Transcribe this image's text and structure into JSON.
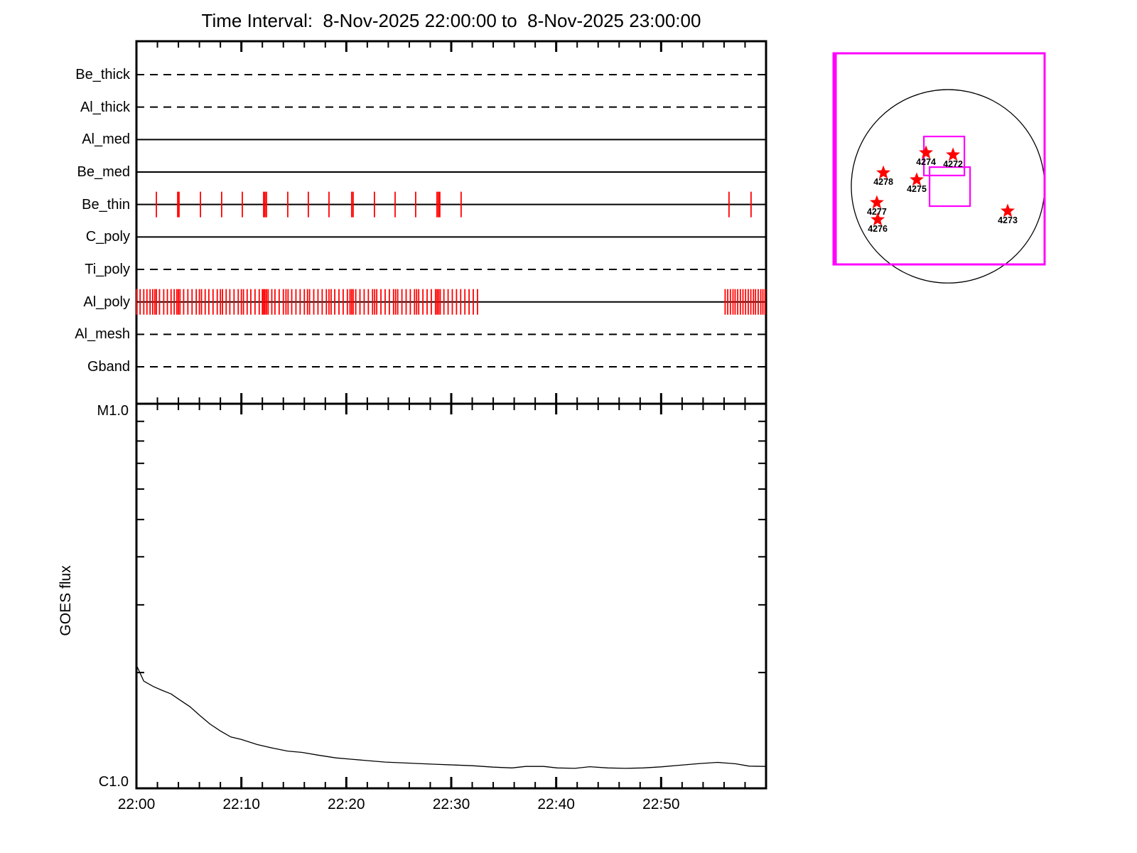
{
  "title": "Time Interval:  8-Nov-2025 22:00:00 to  8-Nov-2025 23:00:00",
  "colors": {
    "exposure_tick": "#ff0000",
    "fov_magenta": "#ff00ff",
    "axis": "#000000",
    "background": "#ffffff",
    "goes_curve": "#000000"
  },
  "time_axis": {
    "tick_labels": [
      "22:00",
      "22:10",
      "22:20",
      "22:30",
      "22:40",
      "22:50"
    ],
    "range_minutes": [
      0,
      60
    ],
    "major_tick_every_min": 10,
    "minor_tick_every_min": 2
  },
  "chart_data": [
    {
      "type": "scatter",
      "name": "xrt-filter-exposure-timeline",
      "x_unit": "minutes after 8-Nov-2025 22:00:00 UT",
      "tick_meaning": "red vertical marks = exposures taken with that filter",
      "rows": [
        {
          "name": "Be_thick",
          "line_style": "dashed",
          "ticks": []
        },
        {
          "name": "Al_thick",
          "line_style": "dashed",
          "ticks": []
        },
        {
          "name": "Al_med",
          "line_style": "solid",
          "ticks": []
        },
        {
          "name": "Be_med",
          "line_style": "solid",
          "ticks": []
        },
        {
          "name": "Be_thin",
          "line_style": "solid",
          "ticks": [
            1.9,
            3.93,
            4.06,
            6.1,
            8.12,
            10.09,
            12.12,
            12.25,
            12.39,
            14.42,
            16.38,
            18.35,
            20.51,
            20.65,
            22.68,
            24.65,
            26.61,
            28.64,
            28.78,
            28.91,
            30.94,
            56.47,
            58.57
          ]
        },
        {
          "name": "C_poly",
          "line_style": "solid",
          "ticks": []
        },
        {
          "name": "Ti_poly",
          "line_style": "dashed",
          "ticks": []
        },
        {
          "name": "Al_poly",
          "line_style": "solid",
          "ticks": [
            0.0,
            0.35,
            0.7,
            1.0,
            1.3,
            1.55,
            1.75,
            1.9,
            2.2,
            2.6,
            2.95,
            3.3,
            3.6,
            3.85,
            4.0,
            4.15,
            4.5,
            4.9,
            5.3,
            5.7,
            6.0,
            6.2,
            6.55,
            6.9,
            7.3,
            7.7,
            8.0,
            8.2,
            8.55,
            8.9,
            9.3,
            9.7,
            10.0,
            10.2,
            10.55,
            10.9,
            11.3,
            11.7,
            12.0,
            12.12,
            12.25,
            12.4,
            12.55,
            12.9,
            13.2,
            13.6,
            14.0,
            14.25,
            14.45,
            14.8,
            15.2,
            15.6,
            16.0,
            16.3,
            16.5,
            16.9,
            17.3,
            17.7,
            18.1,
            18.35,
            18.55,
            18.9,
            19.3,
            19.7,
            20.1,
            20.35,
            20.5,
            20.65,
            20.9,
            21.3,
            21.7,
            22.1,
            22.5,
            22.7,
            22.9,
            23.3,
            23.7,
            24.1,
            24.5,
            24.7,
            24.9,
            25.3,
            25.7,
            26.1,
            26.5,
            26.7,
            26.9,
            27.3,
            27.7,
            28.1,
            28.5,
            28.65,
            28.8,
            28.95,
            29.3,
            29.7,
            30.1,
            30.5,
            30.9,
            31.3,
            31.7,
            32.1,
            32.5,
            56.1,
            56.35,
            56.6,
            56.85,
            57.05,
            57.3,
            57.55,
            57.8,
            58.05,
            58.3,
            58.55,
            58.8,
            59.0,
            59.25,
            59.5,
            59.7,
            59.9
          ]
        },
        {
          "name": "Al_mesh",
          "line_style": "dashed",
          "ticks": []
        },
        {
          "name": "Gband",
          "line_style": "dashed",
          "ticks": []
        }
      ]
    },
    {
      "type": "line",
      "name": "goes-flux",
      "ylabel": "GOES flux",
      "y_axis": {
        "top_label": "M1.0",
        "bottom_label": "C1.0",
        "scale": "log",
        "top_value_wm2": 1e-05,
        "bottom_value_wm2": 1e-06,
        "minor_ticks_c_units": [
          2,
          3,
          4,
          5,
          6,
          7,
          8,
          9
        ]
      },
      "x_minutes": [
        0,
        0.7,
        1.6,
        2.4,
        3.3,
        4.1,
        5.1,
        6.0,
        7.0,
        8.0,
        9.0,
        10.0,
        11.5,
        13.1,
        14.4,
        15.8,
        17.3,
        19.0,
        20.5,
        22.1,
        23.7,
        25.3,
        26.8,
        28.4,
        30.3,
        32.0,
        34.0,
        35.8,
        37.1,
        38.8,
        40.1,
        41.8,
        43.2,
        44.9,
        46.6,
        48.3,
        50.0,
        51.7,
        53.7,
        55.4,
        57.1,
        58.4,
        60
      ],
      "flux_c_units": [
        2.09,
        1.9,
        1.84,
        1.8,
        1.76,
        1.7,
        1.63,
        1.55,
        1.47,
        1.41,
        1.36,
        1.34,
        1.3,
        1.27,
        1.25,
        1.24,
        1.22,
        1.2,
        1.19,
        1.18,
        1.17,
        1.165,
        1.16,
        1.155,
        1.15,
        1.145,
        1.135,
        1.13,
        1.14,
        1.14,
        1.13,
        1.127,
        1.138,
        1.13,
        1.127,
        1.13,
        1.137,
        1.148,
        1.16,
        1.168,
        1.158,
        1.142,
        1.14
      ]
    },
    {
      "type": "scatter",
      "name": "solar-disk-pointing",
      "description": "Solar limb with NOAA active regions (red stars) and magenta FOV boxes",
      "limb": {
        "cx": 0.542,
        "cy": 0.63,
        "r": 0.458
      },
      "fov_boxes": [
        {
          "x": 0.428,
          "y": 0.394,
          "w": 0.192,
          "h": 0.185
        },
        {
          "x": 0.455,
          "y": 0.539,
          "w": 0.192,
          "h": 0.185
        }
      ],
      "stars": [
        {
          "label": "4274",
          "x": 0.438,
          "y": 0.471
        },
        {
          "label": "4272",
          "x": 0.566,
          "y": 0.481
        },
        {
          "label": "4278",
          "x": 0.236,
          "y": 0.566
        },
        {
          "label": "4275",
          "x": 0.394,
          "y": 0.599
        },
        {
          "label": "4277",
          "x": 0.205,
          "y": 0.707
        },
        {
          "label": "4276",
          "x": 0.209,
          "y": 0.788
        },
        {
          "label": "4273",
          "x": 0.825,
          "y": 0.747
        }
      ]
    }
  ]
}
